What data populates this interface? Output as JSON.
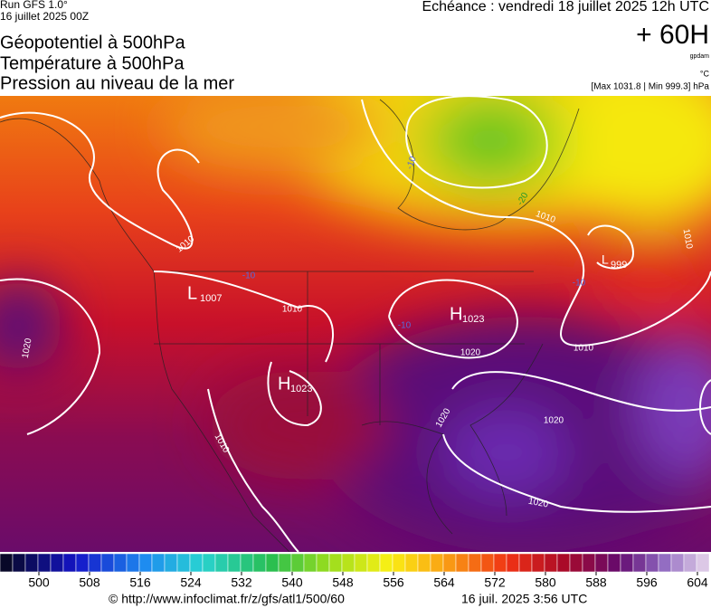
{
  "header": {
    "run": "Run GFS 1.0°",
    "run_date": "16 juillet 2025 00Z",
    "valid": "Echéance : vendredi 18 juillet 2025 12h UTC",
    "lead": "+ 60H",
    "unit_geopotential": "gpdam",
    "unit_temperature": "°C",
    "pressure_range": "[Max 1031.8 | Min 999.3] hPa"
  },
  "titles": [
    "Géopotentiel à 500hPa",
    "Température à 500hPa",
    "Pression au niveau de la mer"
  ],
  "map": {
    "pressure_centers": [
      {
        "type": "L",
        "value": "1007"
      },
      {
        "type": "H",
        "value": "1023"
      },
      {
        "type": "H",
        "value": "1023"
      },
      {
        "type": "L",
        "value": "999"
      }
    ],
    "isobar_labels": [
      "1010",
      "1010",
      "1010",
      "1010",
      "1010",
      "1010",
      "1020",
      "1020",
      "1020",
      "1020",
      "1020"
    ],
    "temperature_labels": [
      "-10",
      "-20",
      "-10",
      "-10",
      "-10"
    ]
  },
  "colorbar": {
    "ticks": [
      500,
      508,
      516,
      524,
      532,
      540,
      548,
      556,
      564,
      572,
      580,
      588,
      596,
      604
    ]
  },
  "footer": {
    "source": "© http://www.infoclimat.fr/z/gfs/atl1/500/60",
    "timestamp": "16 juil. 2025  3:56 UTC"
  }
}
